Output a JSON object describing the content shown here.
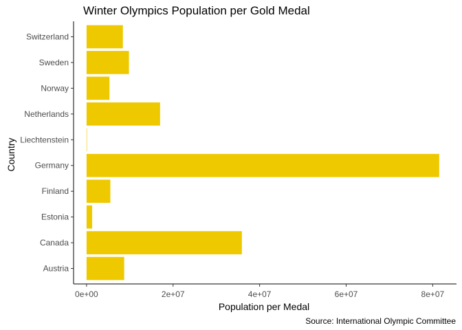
{
  "chart_data": {
    "type": "bar",
    "orientation": "horizontal",
    "title": "Winter Olympics Population per Gold Medal",
    "xlabel": "Population per Medal",
    "ylabel": "Country",
    "caption": "Source: International Olympic Committee",
    "categories": [
      "Switzerland",
      "Sweden",
      "Norway",
      "Netherlands",
      "Liechtenstein",
      "Germany",
      "Finland",
      "Estonia",
      "Canada",
      "Austria"
    ],
    "values": [
      8400000,
      9800000,
      5300000,
      17000000,
      38000,
      81500000,
      5500000,
      1300000,
      35900000,
      8700000
    ],
    "xlim": [
      -3000000,
      85500000
    ],
    "x_ticks": [
      0,
      20000000,
      40000000,
      60000000,
      80000000
    ],
    "x_tick_labels": [
      "0e+00",
      "2e+07",
      "4e+07",
      "6e+07",
      "8e+07"
    ],
    "bar_color": "#EEC900",
    "grid": false,
    "legend": "none"
  }
}
